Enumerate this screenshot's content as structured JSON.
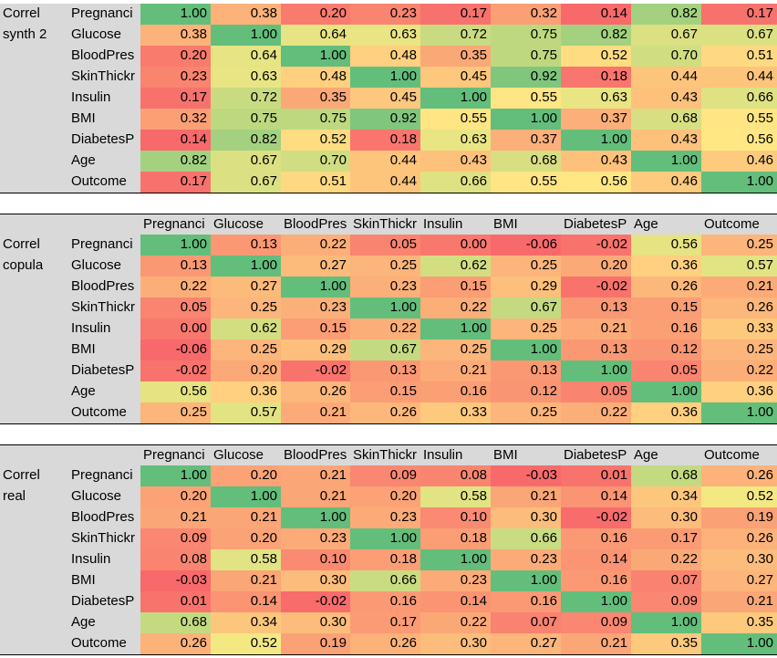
{
  "columns": [
    "Pregnancies",
    "Glucose",
    "BloodPressure",
    "SkinThickness",
    "Insulin",
    "BMI",
    "DiabetesPedigreeFunction",
    "Age",
    "Outcome"
  ],
  "header_labels": [
    "Pregnanci",
    "Glucose",
    "BloodPres",
    "SkinThickr",
    "Insulin",
    "BMI",
    "DiabetesP",
    "Age",
    "Outcome"
  ],
  "row_labels": [
    "Pregnanci",
    "Glucose",
    "BloodPres",
    "SkinThickr",
    "Insulin",
    "BMI",
    "DiabetesP",
    "Age",
    "Outcome"
  ],
  "color_scale": {
    "low": "#f8696b",
    "mid": "#ffeb84",
    "high": "#63be7b"
  },
  "blocks": [
    {
      "name": "synth",
      "title_line1": "Correl",
      "title_line2": "synth 2",
      "show_header": false,
      "values": [
        [
          "1.00",
          "0.38",
          "0.20",
          "0.23",
          "0.17",
          "0.32",
          "0.14",
          "0.82",
          "0.17"
        ],
        [
          "0.38",
          "1.00",
          "0.64",
          "0.63",
          "0.72",
          "0.75",
          "0.82",
          "0.67",
          "0.67"
        ],
        [
          "0.20",
          "0.64",
          "1.00",
          "0.48",
          "0.35",
          "0.75",
          "0.52",
          "0.70",
          "0.51"
        ],
        [
          "0.23",
          "0.63",
          "0.48",
          "1.00",
          "0.45",
          "0.92",
          "0.18",
          "0.44",
          "0.44"
        ],
        [
          "0.17",
          "0.72",
          "0.35",
          "0.45",
          "1.00",
          "0.55",
          "0.63",
          "0.43",
          "0.66"
        ],
        [
          "0.32",
          "0.75",
          "0.75",
          "0.92",
          "0.55",
          "1.00",
          "0.37",
          "0.68",
          "0.55"
        ],
        [
          "0.14",
          "0.82",
          "0.52",
          "0.18",
          "0.63",
          "0.37",
          "1.00",
          "0.43",
          "0.56"
        ],
        [
          "0.82",
          "0.67",
          "0.70",
          "0.44",
          "0.43",
          "0.68",
          "0.43",
          "1.00",
          "0.46"
        ],
        [
          "0.17",
          "0.67",
          "0.51",
          "0.44",
          "0.66",
          "0.55",
          "0.56",
          "0.46",
          "1.00"
        ]
      ]
    },
    {
      "name": "copula",
      "title_line1": "Correl",
      "title_line2": "copula",
      "show_header": true,
      "values": [
        [
          "1.00",
          "0.13",
          "0.22",
          "0.05",
          "0.00",
          "-0.06",
          "-0.02",
          "0.56",
          "0.25"
        ],
        [
          "0.13",
          "1.00",
          "0.27",
          "0.25",
          "0.62",
          "0.25",
          "0.20",
          "0.36",
          "0.57"
        ],
        [
          "0.22",
          "0.27",
          "1.00",
          "0.23",
          "0.15",
          "0.29",
          "-0.02",
          "0.26",
          "0.21"
        ],
        [
          "0.05",
          "0.25",
          "0.23",
          "1.00",
          "0.22",
          "0.67",
          "0.13",
          "0.15",
          "0.26"
        ],
        [
          "0.00",
          "0.62",
          "0.15",
          "0.22",
          "1.00",
          "0.25",
          "0.21",
          "0.16",
          "0.33"
        ],
        [
          "-0.06",
          "0.25",
          "0.29",
          "0.67",
          "0.25",
          "1.00",
          "0.13",
          "0.12",
          "0.25"
        ],
        [
          "-0.02",
          "0.20",
          "-0.02",
          "0.13",
          "0.21",
          "0.13",
          "1.00",
          "0.05",
          "0.22"
        ],
        [
          "0.56",
          "0.36",
          "0.26",
          "0.15",
          "0.16",
          "0.12",
          "0.05",
          "1.00",
          "0.36"
        ],
        [
          "0.25",
          "0.57",
          "0.21",
          "0.26",
          "0.33",
          "0.25",
          "0.22",
          "0.36",
          "1.00"
        ]
      ]
    },
    {
      "name": "real",
      "title_line1": "Correl",
      "title_line2": "real",
      "show_header": true,
      "values": [
        [
          "1.00",
          "0.20",
          "0.21",
          "0.09",
          "0.08",
          "-0.03",
          "0.01",
          "0.68",
          "0.26"
        ],
        [
          "0.20",
          "1.00",
          "0.21",
          "0.20",
          "0.58",
          "0.21",
          "0.14",
          "0.34",
          "0.52"
        ],
        [
          "0.21",
          "0.21",
          "1.00",
          "0.23",
          "0.10",
          "0.30",
          "-0.02",
          "0.30",
          "0.19"
        ],
        [
          "0.09",
          "0.20",
          "0.23",
          "1.00",
          "0.18",
          "0.66",
          "0.16",
          "0.17",
          "0.26"
        ],
        [
          "0.08",
          "0.58",
          "0.10",
          "0.18",
          "1.00",
          "0.23",
          "0.14",
          "0.22",
          "0.30"
        ],
        [
          "-0.03",
          "0.21",
          "0.30",
          "0.66",
          "0.23",
          "1.00",
          "0.16",
          "0.07",
          "0.27"
        ],
        [
          "0.01",
          "0.14",
          "-0.02",
          "0.16",
          "0.14",
          "0.16",
          "1.00",
          "0.09",
          "0.21"
        ],
        [
          "0.68",
          "0.34",
          "0.30",
          "0.17",
          "0.22",
          "0.07",
          "0.09",
          "1.00",
          "0.35"
        ],
        [
          "0.26",
          "0.52",
          "0.19",
          "0.26",
          "0.30",
          "0.27",
          "0.21",
          "0.35",
          "1.00"
        ]
      ]
    }
  ]
}
